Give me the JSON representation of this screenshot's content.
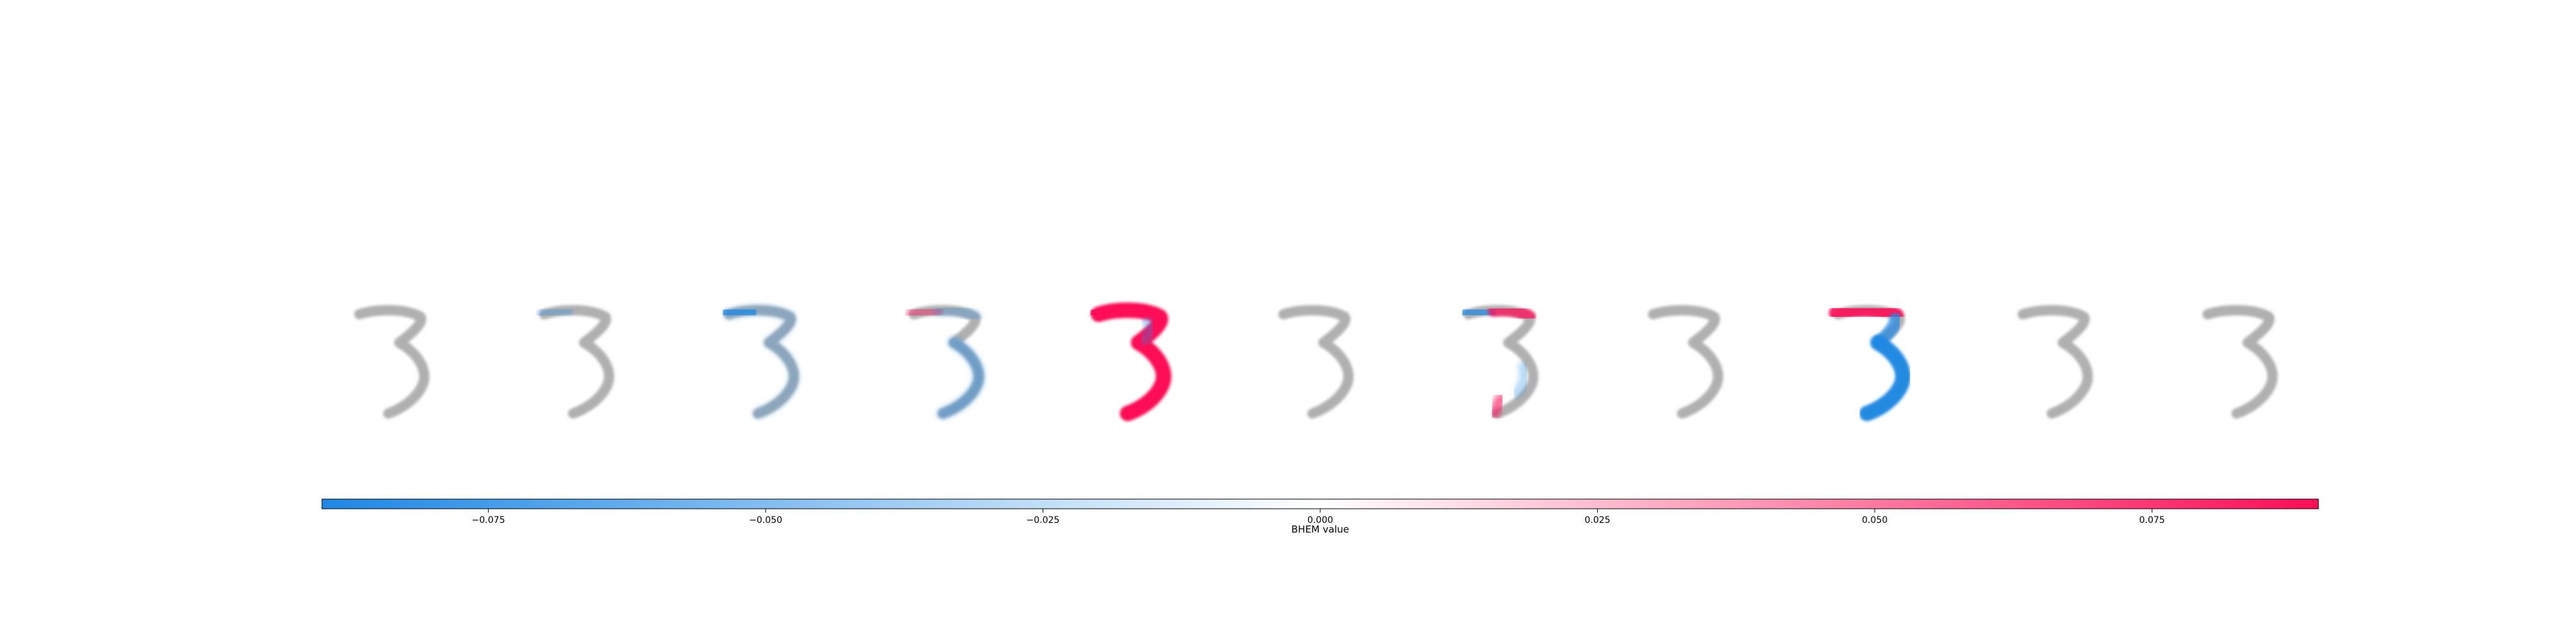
{
  "chart_data": {
    "type": "heatmap",
    "description_units": "per-image attribution overlay; colour encodes BHEM value",
    "images": [
      {
        "blue_strength": 0.05,
        "red_strength": 0.0,
        "overlay": "none"
      },
      {
        "blue_strength": 0.12,
        "red_strength": 0.0,
        "overlay": "top-blue-faint"
      },
      {
        "blue_strength": 0.75,
        "red_strength": 0.0,
        "overlay": "top-blue"
      },
      {
        "blue_strength": 0.45,
        "red_strength": 0.4,
        "overlay": "mixed-faint"
      },
      {
        "blue_strength": 0.15,
        "red_strength": 1.0,
        "overlay": "all-red"
      },
      {
        "blue_strength": 0.0,
        "red_strength": 0.0,
        "overlay": "none"
      },
      {
        "blue_strength": 0.7,
        "red_strength": 0.75,
        "overlay": "top-blue-red"
      },
      {
        "blue_strength": 0.0,
        "red_strength": 0.0,
        "overlay": "none"
      },
      {
        "blue_strength": 0.95,
        "red_strength": 0.9,
        "overlay": "top-red-bottom-blue"
      },
      {
        "blue_strength": 0.05,
        "red_strength": 0.0,
        "overlay": "none"
      },
      {
        "blue_strength": 0.08,
        "red_strength": 0.0,
        "overlay": "none"
      }
    ],
    "colorbar": {
      "label": "BHEM value",
      "range": [
        -0.09,
        0.09
      ],
      "ticks": [
        -0.075,
        -0.05,
        -0.025,
        0.0,
        0.025,
        0.05,
        0.075
      ],
      "tick_labels": [
        "−0.075",
        "−0.050",
        "−0.025",
        "0.000",
        "0.025",
        "0.050",
        "0.075"
      ],
      "color_negative": "#1e88e5",
      "color_mid": "#ffffff",
      "color_positive": "#ff0d57"
    },
    "digit_color": "#b0b0b0"
  }
}
